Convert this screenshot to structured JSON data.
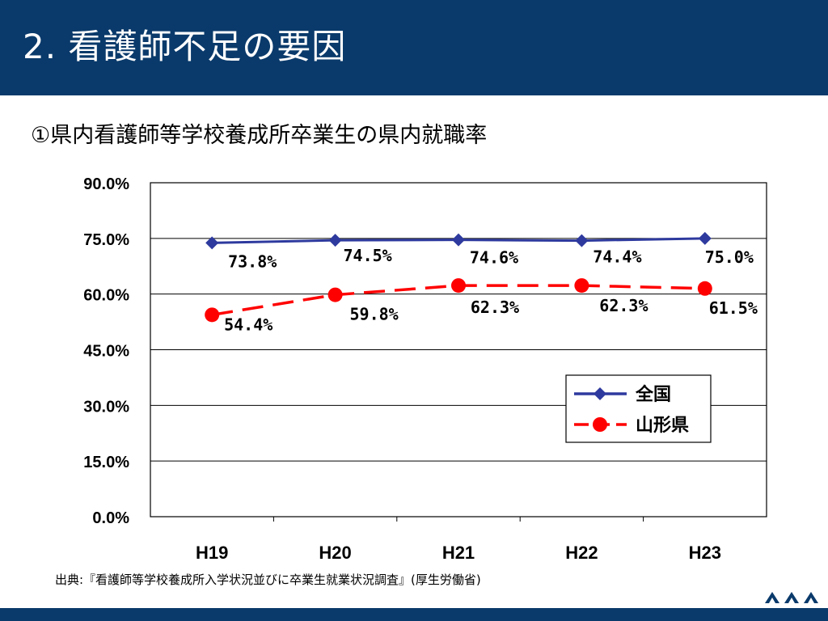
{
  "header": {
    "title": "2. 看護師不足の要因"
  },
  "subtitle": "①県内看護師等学校養成所卒業生の県内就職率",
  "source": "出典:『看護師等学校養成所入学状況並びに卒業生就業状況調査』(厚生労働省)",
  "colors": {
    "header_bg": "#0a3a6b",
    "zenkoku": "#2e3a9e",
    "yamagata": "#ff0000"
  },
  "chart_data": {
    "type": "line",
    "title": "",
    "xlabel": "",
    "ylabel": "",
    "categories": [
      "H19",
      "H20",
      "H21",
      "H22",
      "H23"
    ],
    "ylim": [
      0,
      90
    ],
    "yticks": [
      0,
      15,
      30,
      45,
      60,
      75,
      90
    ],
    "ytick_labels": [
      "0.0%",
      "15.0%",
      "30.0%",
      "45.0%",
      "60.0%",
      "75.0%",
      "90.0%"
    ],
    "grid": true,
    "legend_position": "lower-right",
    "series": [
      {
        "name": "全国",
        "values": [
          73.8,
          74.5,
          74.6,
          74.4,
          75.0
        ],
        "labels": [
          "73.8%",
          "74.5%",
          "74.6%",
          "74.4%",
          "75.0%"
        ],
        "marker": "diamond",
        "line_style": "solid"
      },
      {
        "name": "山形県",
        "values": [
          54.4,
          59.8,
          62.3,
          62.3,
          61.5
        ],
        "labels": [
          "54.4%",
          "59.8%",
          "62.3%",
          "62.3%",
          "61.5%"
        ],
        "marker": "circle",
        "line_style": "dashed"
      }
    ]
  }
}
